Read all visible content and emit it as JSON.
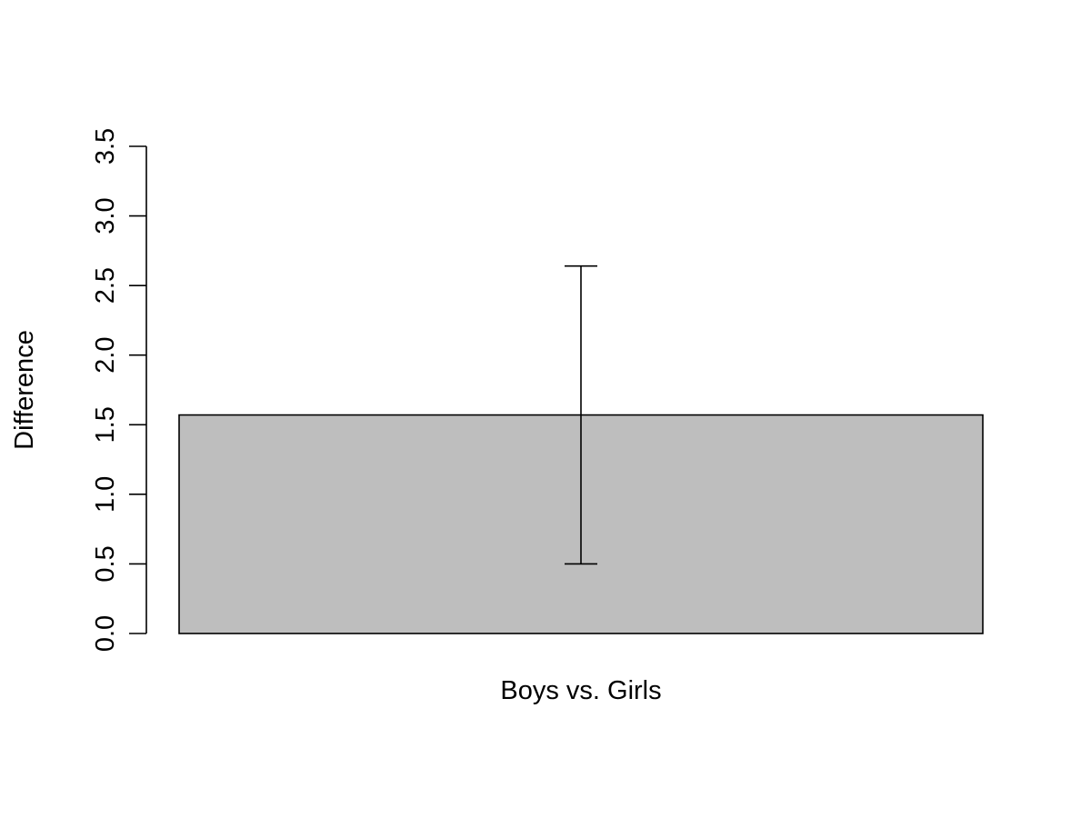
{
  "chart_data": {
    "type": "bar",
    "categories": [
      "Boys vs. Girls"
    ],
    "values": [
      1.57
    ],
    "error_bars": [
      {
        "lower": 0.5,
        "upper": 2.64
      }
    ],
    "title": "",
    "xlabel": "Boys vs. Girls",
    "ylabel": "Difference",
    "ylim": [
      0,
      3.5
    ],
    "yticks": [
      "0.0",
      "0.5",
      "1.0",
      "1.5",
      "2.0",
      "2.5",
      "3.0",
      "3.5"
    ],
    "bar_color": "#bebebe",
    "grid": false
  }
}
